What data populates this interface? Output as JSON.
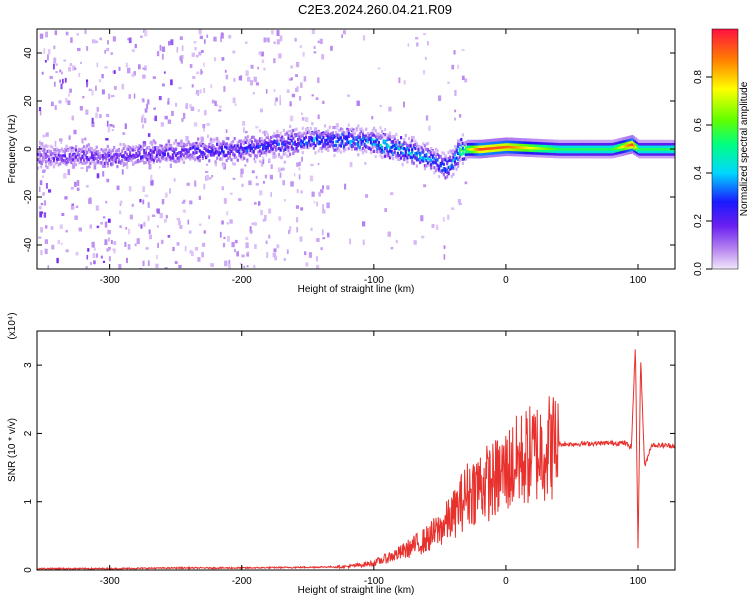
{
  "title": "C2E3.2024.260.04.21.R09",
  "chart_data": [
    {
      "type": "heatmap",
      "xlabel": "Height of straight line (km)",
      "ylabel": "Frequency (Hz)",
      "xlim": [
        -355,
        128
      ],
      "ylim": [
        -50,
        50
      ],
      "xticks": [
        -300,
        -200,
        -100,
        0,
        100
      ],
      "yticks": [
        -40,
        -20,
        0,
        20,
        40
      ],
      "colorbar": {
        "label": "Normalized spectral amplitude",
        "range": [
          0.0,
          1.0
        ],
        "ticks": [
          0.0,
          0.2,
          0.4,
          0.6,
          0.8
        ]
      },
      "ridge": {
        "x": [
          -355,
          -300,
          -250,
          -200,
          -150,
          -120,
          -100,
          -80,
          -60,
          -45,
          -35,
          -20,
          0,
          40,
          80,
          95,
          100,
          128
        ],
        "frequency": [
          -3,
          -3,
          -1,
          0,
          4,
          4,
          3,
          0,
          -3,
          -8,
          0,
          0,
          1,
          0,
          0,
          2,
          0,
          0
        ],
        "amplitude": [
          0.15,
          0.2,
          0.2,
          0.25,
          0.3,
          0.35,
          0.4,
          0.4,
          0.35,
          0.3,
          0.5,
          0.95,
          0.9,
          0.55,
          0.55,
          0.95,
          0.55,
          0.55
        ]
      }
    },
    {
      "type": "line",
      "xlabel": "Height of straight line (km)",
      "ylabel": "SNR (10 * v/v)",
      "multiplier": "(x10⁴)",
      "xlim": [
        -355,
        128
      ],
      "ylim": [
        0,
        3.5
      ],
      "xticks": [
        -300,
        -200,
        -100,
        0,
        100
      ],
      "yticks": [
        0,
        1,
        2,
        3
      ],
      "series": [
        {
          "color": "#e8312d",
          "x": [
            -355,
            -300,
            -250,
            -200,
            -150,
            -120,
            -100,
            -80,
            -60,
            -50,
            -40,
            -30,
            -20,
            -10,
            0,
            10,
            20,
            30,
            40,
            60,
            80,
            90,
            95,
            98,
            100,
            102,
            105,
            110,
            128
          ],
          "y": [
            0.02,
            0.02,
            0.03,
            0.03,
            0.04,
            0.05,
            0.1,
            0.25,
            0.45,
            0.6,
            0.8,
            1.1,
            1.25,
            1.3,
            1.45,
            1.6,
            1.7,
            1.8,
            1.84,
            1.85,
            1.86,
            1.86,
            1.8,
            3.3,
            0.3,
            3.1,
            1.5,
            1.83,
            1.82
          ]
        }
      ]
    }
  ]
}
